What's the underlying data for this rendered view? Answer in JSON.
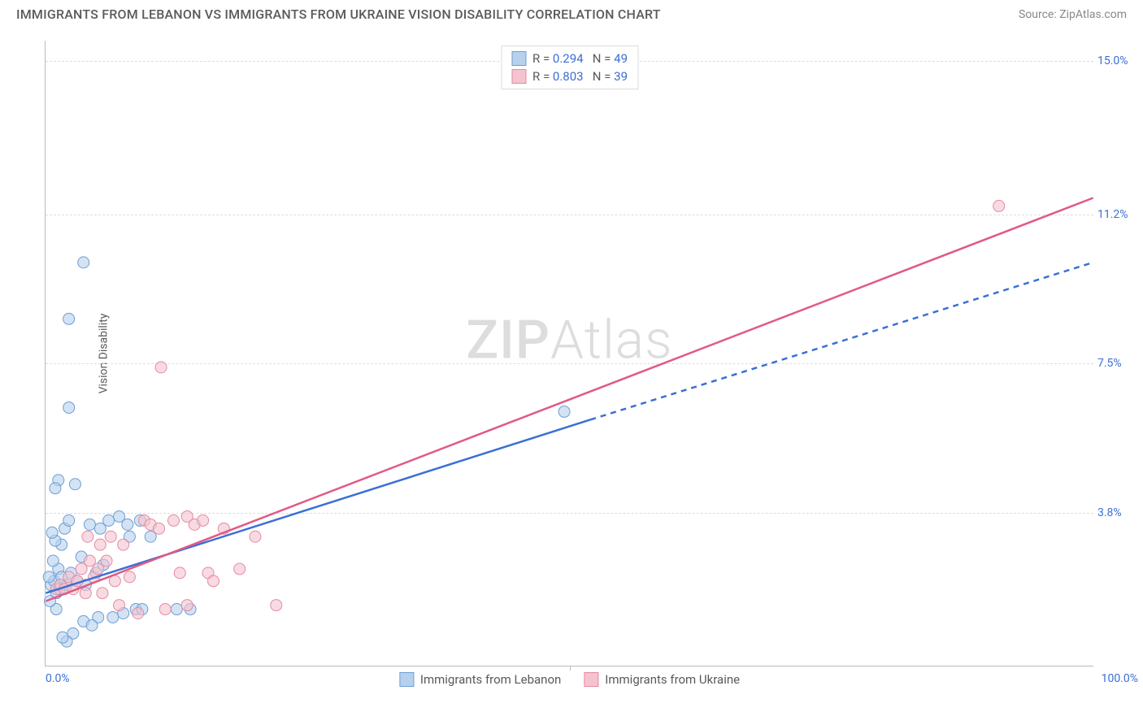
{
  "title": "IMMIGRANTS FROM LEBANON VS IMMIGRANTS FROM UKRAINE VISION DISABILITY CORRELATION CHART",
  "source": "Source: ZipAtlas.com",
  "y_axis_label": "Vision Disability",
  "watermark": {
    "bold": "ZIP",
    "light": "Atlas"
  },
  "colors": {
    "series_a_fill": "#b7d1ec",
    "series_a_stroke": "#6a9fd4",
    "series_b_fill": "#f4c3cf",
    "series_b_stroke": "#e68aa2",
    "line_blue": "#3b6fd6",
    "line_pink": "#e05a85",
    "tick_blue": "#3b6fd6",
    "grid": "#dcdcdc",
    "axis": "#bbbbbb",
    "text_gray": "#5a5a5a"
  },
  "x_range": [
    0,
    100
  ],
  "y_range": [
    0,
    15.5
  ],
  "y_ticks": [
    {
      "v": 3.8,
      "label": "3.8%"
    },
    {
      "v": 7.5,
      "label": "7.5%"
    },
    {
      "v": 11.2,
      "label": "11.2%"
    },
    {
      "v": 15.0,
      "label": "15.0%"
    }
  ],
  "x_ticks": [
    {
      "v": 0,
      "label": "0.0%",
      "align": "left"
    },
    {
      "v": 100,
      "label": "100.0%",
      "align": "right"
    }
  ],
  "x_minor_grids": [
    50
  ],
  "legend": {
    "rows": [
      {
        "swatch": "a",
        "r_label": "R =",
        "r_val": "0.294",
        "n_label": "N =",
        "n_val": "49"
      },
      {
        "swatch": "b",
        "r_label": "R =",
        "r_val": "0.803",
        "n_label": "N =",
        "n_val": "39"
      }
    ]
  },
  "x_legend": [
    {
      "swatch": "a",
      "label": "Immigrants from Lebanon"
    },
    {
      "swatch": "b",
      "label": "Immigrants from Ukraine"
    }
  ],
  "trend_lines": {
    "blue_solid": {
      "x1": 0,
      "y1": 1.8,
      "x2": 52,
      "y2": 6.1
    },
    "blue_dash": {
      "x1": 52,
      "y1": 6.1,
      "x2": 100,
      "y2": 10.0
    },
    "pink": {
      "x1": 0,
      "y1": 1.6,
      "x2": 100,
      "y2": 11.6
    }
  },
  "marker_radius": 7,
  "series_a_points": [
    [
      0.5,
      2.0
    ],
    [
      0.8,
      2.1
    ],
    [
      1.0,
      1.8
    ],
    [
      1.2,
      2.4
    ],
    [
      1.0,
      1.4
    ],
    [
      1.5,
      2.2
    ],
    [
      0.7,
      2.6
    ],
    [
      2.0,
      2.0
    ],
    [
      2.4,
      2.3
    ],
    [
      1.2,
      4.6
    ],
    [
      0.9,
      4.4
    ],
    [
      1.5,
      3.0
    ],
    [
      1.8,
      3.4
    ],
    [
      2.2,
      3.6
    ],
    [
      3.0,
      2.1
    ],
    [
      3.4,
      2.7
    ],
    [
      3.8,
      2.0
    ],
    [
      4.2,
      3.5
    ],
    [
      4.8,
      2.3
    ],
    [
      5.2,
      3.4
    ],
    [
      5.5,
      2.5
    ],
    [
      6.0,
      3.6
    ],
    [
      6.4,
      1.2
    ],
    [
      7.0,
      3.7
    ],
    [
      7.4,
      1.3
    ],
    [
      7.8,
      3.5
    ],
    [
      5.0,
      1.2
    ],
    [
      3.6,
      1.1
    ],
    [
      4.4,
      1.0
    ],
    [
      2.6,
      0.8
    ],
    [
      2.0,
      0.6
    ],
    [
      1.6,
      0.7
    ],
    [
      8.6,
      1.4
    ],
    [
      9.2,
      1.4
    ],
    [
      12.5,
      1.4
    ],
    [
      13.8,
      1.4
    ],
    [
      2.8,
      4.5
    ],
    [
      0.9,
      3.1
    ],
    [
      0.6,
      3.3
    ],
    [
      1.3,
      1.9
    ],
    [
      0.4,
      1.6
    ],
    [
      0.3,
      2.2
    ],
    [
      2.2,
      8.6
    ],
    [
      2.2,
      6.4
    ],
    [
      3.6,
      10.0
    ],
    [
      49.5,
      6.3
    ],
    [
      8.0,
      3.2
    ],
    [
      9.0,
      3.6
    ],
    [
      10.0,
      3.2
    ]
  ],
  "series_b_points": [
    [
      1.0,
      1.9
    ],
    [
      1.4,
      2.0
    ],
    [
      1.8,
      1.9
    ],
    [
      2.2,
      2.2
    ],
    [
      2.6,
      1.9
    ],
    [
      3.0,
      2.1
    ],
    [
      3.4,
      2.4
    ],
    [
      3.8,
      1.8
    ],
    [
      4.2,
      2.6
    ],
    [
      4.6,
      2.2
    ],
    [
      5.0,
      2.4
    ],
    [
      5.4,
      1.8
    ],
    [
      5.8,
      2.6
    ],
    [
      6.2,
      3.2
    ],
    [
      6.6,
      2.1
    ],
    [
      7.0,
      1.5
    ],
    [
      7.4,
      3.0
    ],
    [
      8.0,
      2.2
    ],
    [
      8.8,
      1.3
    ],
    [
      9.4,
      3.6
    ],
    [
      10.0,
      3.5
    ],
    [
      10.8,
      3.4
    ],
    [
      11.4,
      1.4
    ],
    [
      12.2,
      3.6
    ],
    [
      12.8,
      2.3
    ],
    [
      13.5,
      3.7
    ],
    [
      14.2,
      3.5
    ],
    [
      15.0,
      3.6
    ],
    [
      17.0,
      3.4
    ],
    [
      18.5,
      2.4
    ],
    [
      20.0,
      3.2
    ],
    [
      11.0,
      7.4
    ],
    [
      13.5,
      1.5
    ],
    [
      15.5,
      2.3
    ],
    [
      16.0,
      2.1
    ],
    [
      22.0,
      1.5
    ],
    [
      4.0,
      3.2
    ],
    [
      5.2,
      3.0
    ],
    [
      91.0,
      11.4
    ]
  ]
}
